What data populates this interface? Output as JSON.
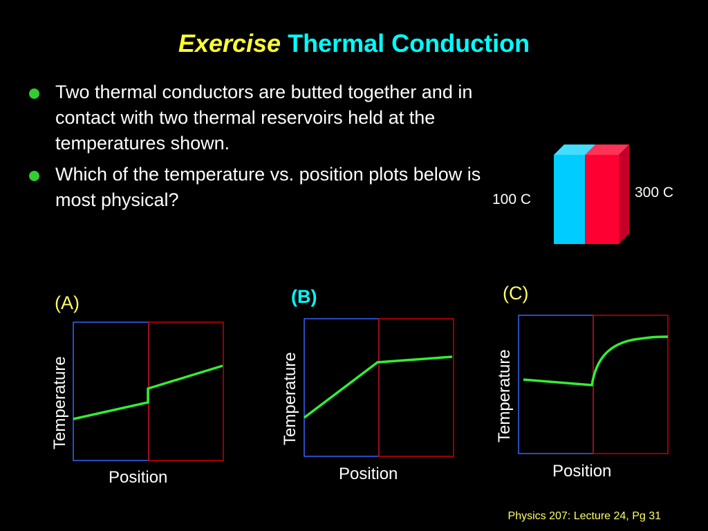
{
  "slide": {
    "title_italic": "Exercise",
    "title_main": "Thermal Conduction",
    "bullets": [
      "Two thermal conductors are butted together and in contact with two thermal reservoirs held at the temperatures shown.",
      "Which of the temperature vs. position plots below is most physical?"
    ],
    "reservoir_left": "100 C",
    "reservoir_right": "300 C",
    "footer": "Physics 207: Lecture 24, Pg 31"
  },
  "plots": [
    {
      "letter": "(A)",
      "xlabel": "Position",
      "ylabel": "Temperature"
    },
    {
      "letter": "(B)",
      "xlabel": "Position",
      "ylabel": "Temperature"
    },
    {
      "letter": "(C)",
      "xlabel": "Position",
      "ylabel": "Temperature"
    }
  ],
  "colors": {
    "background": "#000000",
    "title_italic": "#ffff33",
    "title_main": "#00ffff",
    "bullet": "#33cc33",
    "blue_conductor": "#00ccff",
    "red_conductor": "#ff0033",
    "curve": "#33ee33",
    "left_box": "#3366ff",
    "right_box": "#cc0000",
    "footer": "#ffff66"
  }
}
